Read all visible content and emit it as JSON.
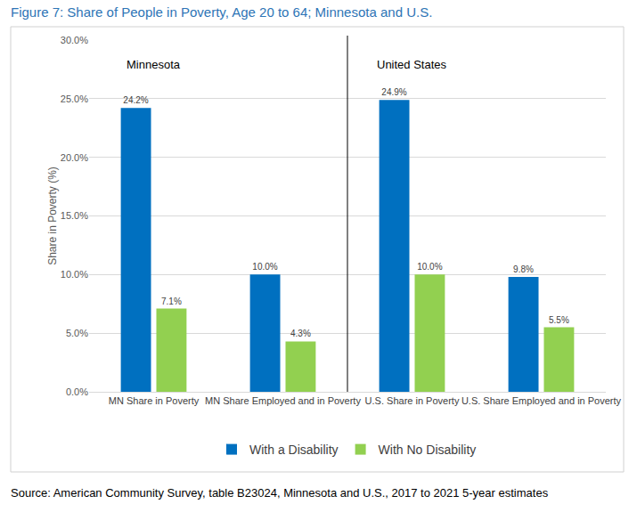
{
  "chart_data": {
    "type": "bar",
    "title": "Figure 7: Share of People in Poverty, Age 20 to 64; Minnesota and U.S.",
    "y_label": "Share in Poverty (%)",
    "categories": [
      "MN Share in Poverty",
      "MN Share Employed and in Poverty",
      "U.S. Share in Poverty",
      "U.S. Share Employed and in Poverty"
    ],
    "series": [
      {
        "name": "With a Disability",
        "color": "#0070c0",
        "values": [
          24.2,
          10.0,
          24.9,
          9.8
        ],
        "value_labels": [
          "24.2%",
          "10.0%",
          "24.9%",
          "9.8%"
        ]
      },
      {
        "name": "With No Disability",
        "color": "#92d050",
        "values": [
          7.1,
          4.3,
          10.0,
          5.5
        ],
        "value_labels": [
          "7.1%",
          "4.3%",
          "10.0%",
          "5.5%"
        ]
      }
    ],
    "ylim": [
      0,
      30
    ],
    "yticks": [
      {
        "value": 0,
        "label": "0.0%"
      },
      {
        "value": 5,
        "label": "5.0%"
      },
      {
        "value": 10,
        "label": "10.0%"
      },
      {
        "value": 15,
        "label": "15.0%"
      },
      {
        "value": 20,
        "label": "20.0%"
      },
      {
        "value": 25,
        "label": "25.0%"
      },
      {
        "value": 30,
        "label": "30.0%"
      }
    ],
    "grid": true,
    "legend": "bottom",
    "data_labels": true,
    "annotations": [
      "Minnesota",
      "United States"
    ],
    "source": "Source: American Community Survey, table B23024, Minnesota and U.S., 2017 to 2021 5-year estimates"
  }
}
